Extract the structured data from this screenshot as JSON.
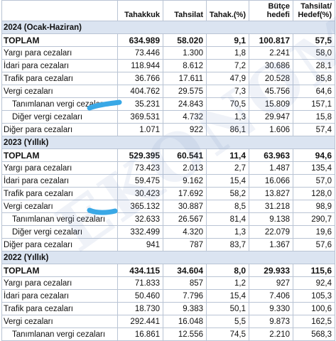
{
  "header": [
    "",
    "Tahakkuk",
    "Tahsilat",
    "Tahak.(%)",
    "hedefi",
    "Hedef(%)"
  ],
  "header_top": [
    "",
    "",
    "",
    "",
    "Bütçe",
    "Tahsilat/"
  ],
  "watermark": "EKONOMİ",
  "sections": [
    {
      "year": "2024 (Ocak-Haziran)",
      "rows": [
        {
          "label": "TOPLAM",
          "total": true,
          "v": [
            "634.989",
            "58.020",
            "9,1",
            "100.817",
            "57,5"
          ]
        },
        {
          "label": "Yargı para cezaları",
          "v": [
            "73.446",
            "1.300",
            "1,8",
            "2.241",
            "58,0"
          ]
        },
        {
          "label": "İdari para cezaları",
          "v": [
            "118.944",
            "8.612",
            "7,2",
            "30.686",
            "28,1"
          ]
        },
        {
          "label": "Trafik para cezaları",
          "v": [
            "36.766",
            "17.611",
            "47,9",
            "20.528",
            "85,8"
          ]
        },
        {
          "label": "Vergi cezaları",
          "v": [
            "404.762",
            "29.575",
            "7,3",
            "45.756",
            "64,6"
          ]
        },
        {
          "label": "Tanımlanan vergi cezaları",
          "sub": true,
          "v": [
            "35.231",
            "24.843",
            "70,5",
            "15.809",
            "157,1"
          ]
        },
        {
          "label": "Diğer vergi cezaları",
          "sub": true,
          "v": [
            "369.531",
            "4.732",
            "1,3",
            "29.947",
            "15,8"
          ]
        },
        {
          "label": "Diğer para cezaları",
          "v": [
            "1.071",
            "922",
            "86,1",
            "1.606",
            "57,4"
          ]
        }
      ]
    },
    {
      "year": "2023 (Yıllık)",
      "rows": [
        {
          "label": "TOPLAM",
          "total": true,
          "v": [
            "529.395",
            "60.541",
            "11,4",
            "63.963",
            "94,6"
          ]
        },
        {
          "label": "Yargı para cezaları",
          "v": [
            "73.423",
            "2.013",
            "2,7",
            "1.487",
            "135,4"
          ]
        },
        {
          "label": "İdari para cezaları",
          "v": [
            "59.475",
            "9.162",
            "15,4",
            "16.066",
            "57,0"
          ]
        },
        {
          "label": "Trafik para cezaları",
          "v": [
            "30.423",
            "17.692",
            "58,2",
            "13.827",
            "128,0"
          ]
        },
        {
          "label": "Vergi cezaları",
          "v": [
            "365.132",
            "30.887",
            "8,5",
            "31.218",
            "98,9"
          ]
        },
        {
          "label": "Tanımlanan vergi cezaları",
          "sub": true,
          "v": [
            "32.633",
            "26.567",
            "81,4",
            "9.138",
            "290,7"
          ]
        },
        {
          "label": "Diğer vergi cezaları",
          "sub": true,
          "v": [
            "332.499",
            "4.320",
            "1,3",
            "22.079",
            "19,6"
          ]
        },
        {
          "label": "Diğer para cezaları",
          "v": [
            "941",
            "787",
            "83,7",
            "1.367",
            "57,6"
          ]
        }
      ]
    },
    {
      "year": "2022 (Yıllık)",
      "rows": [
        {
          "label": "TOPLAM",
          "total": true,
          "v": [
            "434.115",
            "34.604",
            "8,0",
            "29.933",
            "115,6"
          ]
        },
        {
          "label": "Yargı para cezaları",
          "v": [
            "71.833",
            "857",
            "1,2",
            "927",
            "92,4"
          ]
        },
        {
          "label": "İdari para cezaları",
          "v": [
            "50.460",
            "7.796",
            "15,4",
            "7.406",
            "105,3"
          ]
        },
        {
          "label": "Trafik para cezaları",
          "v": [
            "18.730",
            "9.383",
            "50,1",
            "9.330",
            "100,6"
          ]
        },
        {
          "label": "Vergi cezaları",
          "v": [
            "292.441",
            "16.048",
            "5,5",
            "9.873",
            "162,5"
          ]
        },
        {
          "label": "Tanımlanan vergi cezaları",
          "sub": true,
          "v": [
            "16.861",
            "12.556",
            "74,5",
            "2.210",
            "568,3"
          ]
        }
      ]
    }
  ],
  "colors": {
    "year_band": "#dbe4f1",
    "grid": "#b9c4d4",
    "highlight": "#39a8e6"
  }
}
